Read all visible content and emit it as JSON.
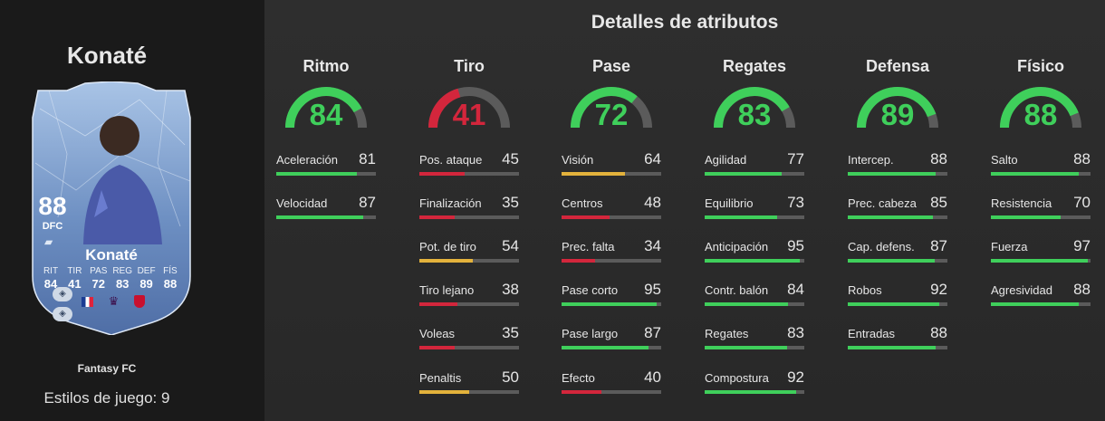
{
  "player": {
    "name": "Konaté",
    "rating": "88",
    "position": "DFC",
    "card_name": "Konaté",
    "version": "Fantasy FC",
    "playstyles_label": "Estilos de juego: 9",
    "card_stats": [
      {
        "label": "RIT",
        "value": "84"
      },
      {
        "label": "TIR",
        "value": "41"
      },
      {
        "label": "PAS",
        "value": "72"
      },
      {
        "label": "REG",
        "value": "83"
      },
      {
        "label": "DEF",
        "value": "89"
      },
      {
        "label": "FÍS",
        "value": "88"
      }
    ]
  },
  "section_title": "Detalles de atributos",
  "colors": {
    "high": "#3fcf5b",
    "mid": "#e3b23c",
    "low": "#d3263c",
    "track": "#5b5b5b"
  },
  "categories": [
    {
      "name": "Ritmo",
      "value": 84,
      "stats": [
        {
          "name": "Aceleración",
          "value": 81
        },
        {
          "name": "Velocidad",
          "value": 87
        }
      ]
    },
    {
      "name": "Tiro",
      "value": 41,
      "stats": [
        {
          "name": "Pos. ataque",
          "value": 45
        },
        {
          "name": "Finalización",
          "value": 35
        },
        {
          "name": "Pot. de tiro",
          "value": 54
        },
        {
          "name": "Tiro lejano",
          "value": 38
        },
        {
          "name": "Voleas",
          "value": 35
        },
        {
          "name": "Penaltis",
          "value": 50
        }
      ]
    },
    {
      "name": "Pase",
      "value": 72,
      "stats": [
        {
          "name": "Visión",
          "value": 64
        },
        {
          "name": "Centros",
          "value": 48
        },
        {
          "name": "Prec. falta",
          "value": 34
        },
        {
          "name": "Pase corto",
          "value": 95
        },
        {
          "name": "Pase largo",
          "value": 87
        },
        {
          "name": "Efecto",
          "value": 40
        }
      ]
    },
    {
      "name": "Regates",
      "value": 83,
      "stats": [
        {
          "name": "Agilidad",
          "value": 77
        },
        {
          "name": "Equilibrio",
          "value": 73
        },
        {
          "name": "Anticipación",
          "value": 95
        },
        {
          "name": "Contr. balón",
          "value": 84
        },
        {
          "name": "Regates",
          "value": 83
        },
        {
          "name": "Compostura",
          "value": 92
        }
      ]
    },
    {
      "name": "Defensa",
      "value": 89,
      "stats": [
        {
          "name": "Intercep.",
          "value": 88
        },
        {
          "name": "Prec. cabeza",
          "value": 85
        },
        {
          "name": "Cap. defens.",
          "value": 87
        },
        {
          "name": "Robos",
          "value": 92
        },
        {
          "name": "Entradas",
          "value": 88
        }
      ]
    },
    {
      "name": "Físico",
      "value": 88,
      "stats": [
        {
          "name": "Salto",
          "value": 88
        },
        {
          "name": "Resistencia",
          "value": 70
        },
        {
          "name": "Fuerza",
          "value": 97
        },
        {
          "name": "Agresividad",
          "value": 88
        }
      ]
    }
  ]
}
